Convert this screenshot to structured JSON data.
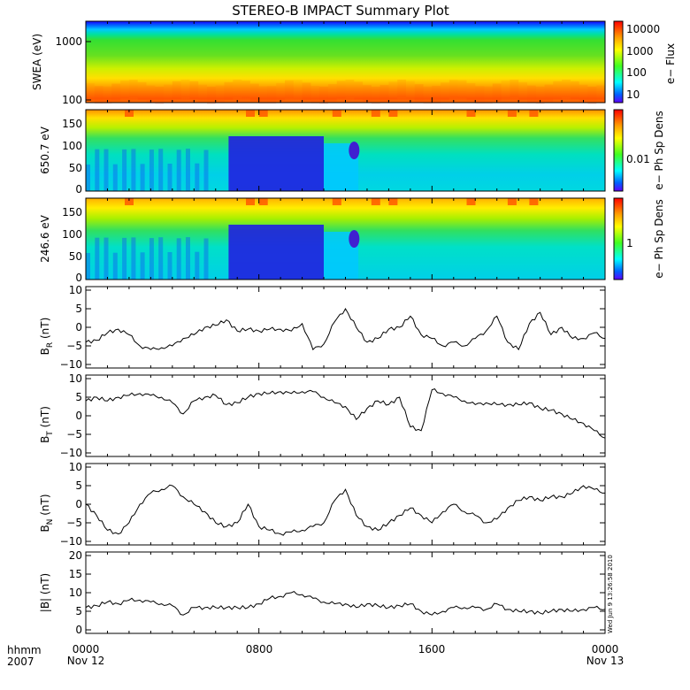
{
  "title": "STEREO-B IMPACT Summary Plot",
  "footer": {
    "hhmm": "hhmm",
    "year": "2007",
    "x_ticks": [
      "0000",
      "0800",
      "1600",
      "0000"
    ],
    "x_dates": [
      "Nov 12",
      "",
      "",
      "Nov 13"
    ]
  },
  "timestamp": "Wed Jun 9 13:26:58 2010",
  "chart_data": [
    {
      "type": "heatmap",
      "id": "swea",
      "ylabel": "SWEA (eV)",
      "y_scale": "log",
      "y_ticks": [
        "1000",
        "100"
      ],
      "colorbar_label": "e− Flux",
      "colorbar_ticks": [
        "10000",
        "1000",
        "100",
        "10"
      ]
    },
    {
      "type": "heatmap",
      "id": "pad650",
      "ylabel": "650.7 eV",
      "y_ticks": [
        "150",
        "100",
        "50",
        "0"
      ],
      "ylim": [
        0,
        180
      ],
      "colorbar_label": "e− Ph Sp Dens",
      "colorbar_ticks": [
        "0.01"
      ]
    },
    {
      "type": "heatmap",
      "id": "pad246",
      "ylabel": "246.6 eV",
      "y_ticks": [
        "150",
        "100",
        "50",
        "0"
      ],
      "ylim": [
        0,
        180
      ],
      "colorbar_label": "e− Ph Sp Dens",
      "colorbar_ticks": [
        "1"
      ]
    },
    {
      "type": "line",
      "id": "br",
      "ylabel_main": "B",
      "ylabel_sub": "R",
      "ylabel_unit": " (nT)",
      "ylim": [
        -10,
        10
      ],
      "y_ticks": [
        "10",
        "5",
        "0",
        "−5",
        "−10"
      ],
      "x_hours": [
        0,
        0.5,
        1,
        1.5,
        2,
        2.5,
        3,
        3.5,
        4,
        4.5,
        5,
        5.5,
        6,
        6.5,
        7,
        7.5,
        8,
        8.5,
        9,
        9.5,
        10,
        10.5,
        11,
        11.5,
        12,
        12.5,
        13,
        13.5,
        14,
        14.5,
        15,
        15.5,
        16,
        16.5,
        17,
        17.5,
        18,
        18.5,
        19,
        19.5,
        20,
        20.5,
        21,
        21.5,
        22,
        22.5,
        23,
        23.5,
        24
      ],
      "values": [
        -4,
        -3.5,
        -1.5,
        -0.5,
        -2,
        -5,
        -6,
        -5.5,
        -5,
        -3,
        -2,
        0,
        0.5,
        2,
        -1,
        -0.5,
        -1,
        -0.5,
        -0.5,
        -1,
        1,
        -6,
        -4.5,
        1.5,
        5,
        0,
        -4,
        -3,
        -0.5,
        0,
        3,
        -2,
        -3,
        -5,
        -4,
        -5,
        -3,
        -1,
        3,
        -4,
        -6,
        1,
        4,
        -2,
        0,
        -3,
        -3,
        -1.5,
        -3
      ]
    },
    {
      "type": "line",
      "id": "bt",
      "ylabel_main": "B",
      "ylabel_sub": "T",
      "ylabel_unit": " (nT)",
      "ylim": [
        -10,
        10
      ],
      "y_ticks": [
        "10",
        "5",
        "0",
        "−5",
        "−10"
      ],
      "x_hours": [
        0,
        0.5,
        1,
        1.5,
        2,
        2.5,
        3,
        3.5,
        4,
        4.5,
        5,
        5.5,
        6,
        6.5,
        7,
        7.5,
        8,
        8.5,
        9,
        9.5,
        10,
        10.5,
        11,
        11.5,
        12,
        12.5,
        13,
        13.5,
        14,
        14.5,
        15,
        15.5,
        16,
        16.5,
        17,
        17.5,
        18,
        18.5,
        19,
        19.5,
        20,
        20.5,
        21,
        21.5,
        22,
        22.5,
        23,
        23.5,
        24
      ],
      "values": [
        4,
        5,
        4,
        5,
        5.5,
        6,
        5.5,
        5,
        3.5,
        0.5,
        4,
        5,
        5.5,
        3,
        3.5,
        5,
        6,
        6,
        6.5,
        6,
        6.5,
        6.5,
        5,
        3.5,
        2.5,
        -1,
        2,
        4,
        3,
        5,
        -3,
        -4,
        7,
        6,
        5,
        4,
        3,
        3.5,
        3,
        3,
        3,
        3.5,
        2,
        1.5,
        0.5,
        -1,
        -2,
        -4,
        -6
      ]
    },
    {
      "type": "line",
      "id": "bn",
      "ylabel_main": "B",
      "ylabel_sub": "N",
      "ylabel_unit": " (nT)",
      "ylim": [
        -10,
        10
      ],
      "y_ticks": [
        "10",
        "5",
        "0",
        "−5",
        "−10"
      ],
      "x_hours": [
        0,
        0.5,
        1,
        1.5,
        2,
        2.5,
        3,
        3.5,
        4,
        4.5,
        5,
        5.5,
        6,
        6.5,
        7,
        7.5,
        8,
        8.5,
        9,
        9.5,
        10,
        10.5,
        11,
        11.5,
        12,
        12.5,
        13,
        13.5,
        14,
        14.5,
        15,
        15.5,
        16,
        16.5,
        17,
        17.5,
        18,
        18.5,
        19,
        19.5,
        20,
        20.5,
        21,
        21.5,
        22,
        22.5,
        23,
        23.5,
        24
      ],
      "values": [
        0,
        -3,
        -7,
        -8,
        -5,
        0,
        3,
        4,
        5,
        2,
        0,
        -2,
        -5,
        -6,
        -5,
        0,
        -6,
        -7,
        -8,
        -7.5,
        -7,
        -6,
        -5,
        1,
        4,
        -3,
        -6,
        -7,
        -5,
        -3,
        -1,
        -3,
        -5,
        -2,
        0,
        -2,
        -3,
        -5,
        -4,
        -1,
        1,
        2,
        1,
        2,
        2,
        3,
        5,
        4,
        3
      ]
    },
    {
      "type": "line",
      "id": "bmag",
      "ylabel_main": "|B| (nT)",
      "ylim": [
        0,
        20
      ],
      "y_ticks": [
        "20",
        "15",
        "10",
        "5",
        "0"
      ],
      "x_hours": [
        0,
        0.5,
        1,
        1.5,
        2,
        2.5,
        3,
        3.5,
        4,
        4.5,
        5,
        5.5,
        6,
        6.5,
        7,
        7.5,
        8,
        8.5,
        9,
        9.5,
        10,
        10.5,
        11,
        11.5,
        12,
        12.5,
        13,
        13.5,
        14,
        14.5,
        15,
        15.5,
        16,
        16.5,
        17,
        17.5,
        18,
        18.5,
        19,
        19.5,
        20,
        20.5,
        21,
        21.5,
        22,
        22.5,
        23,
        23.5,
        24
      ],
      "values": [
        6,
        6.5,
        7.5,
        7,
        8,
        8,
        7.5,
        7,
        6.5,
        4,
        6,
        6,
        6,
        6,
        6,
        6,
        7,
        8.5,
        9,
        10,
        9.5,
        8.5,
        7.5,
        7,
        7,
        6,
        7,
        6.5,
        6,
        6.5,
        7,
        5,
        4,
        5,
        6,
        6,
        6,
        5.5,
        7,
        5.5,
        5,
        5,
        4.5,
        5,
        5.5,
        5,
        5.5,
        6,
        5.5
      ]
    }
  ]
}
